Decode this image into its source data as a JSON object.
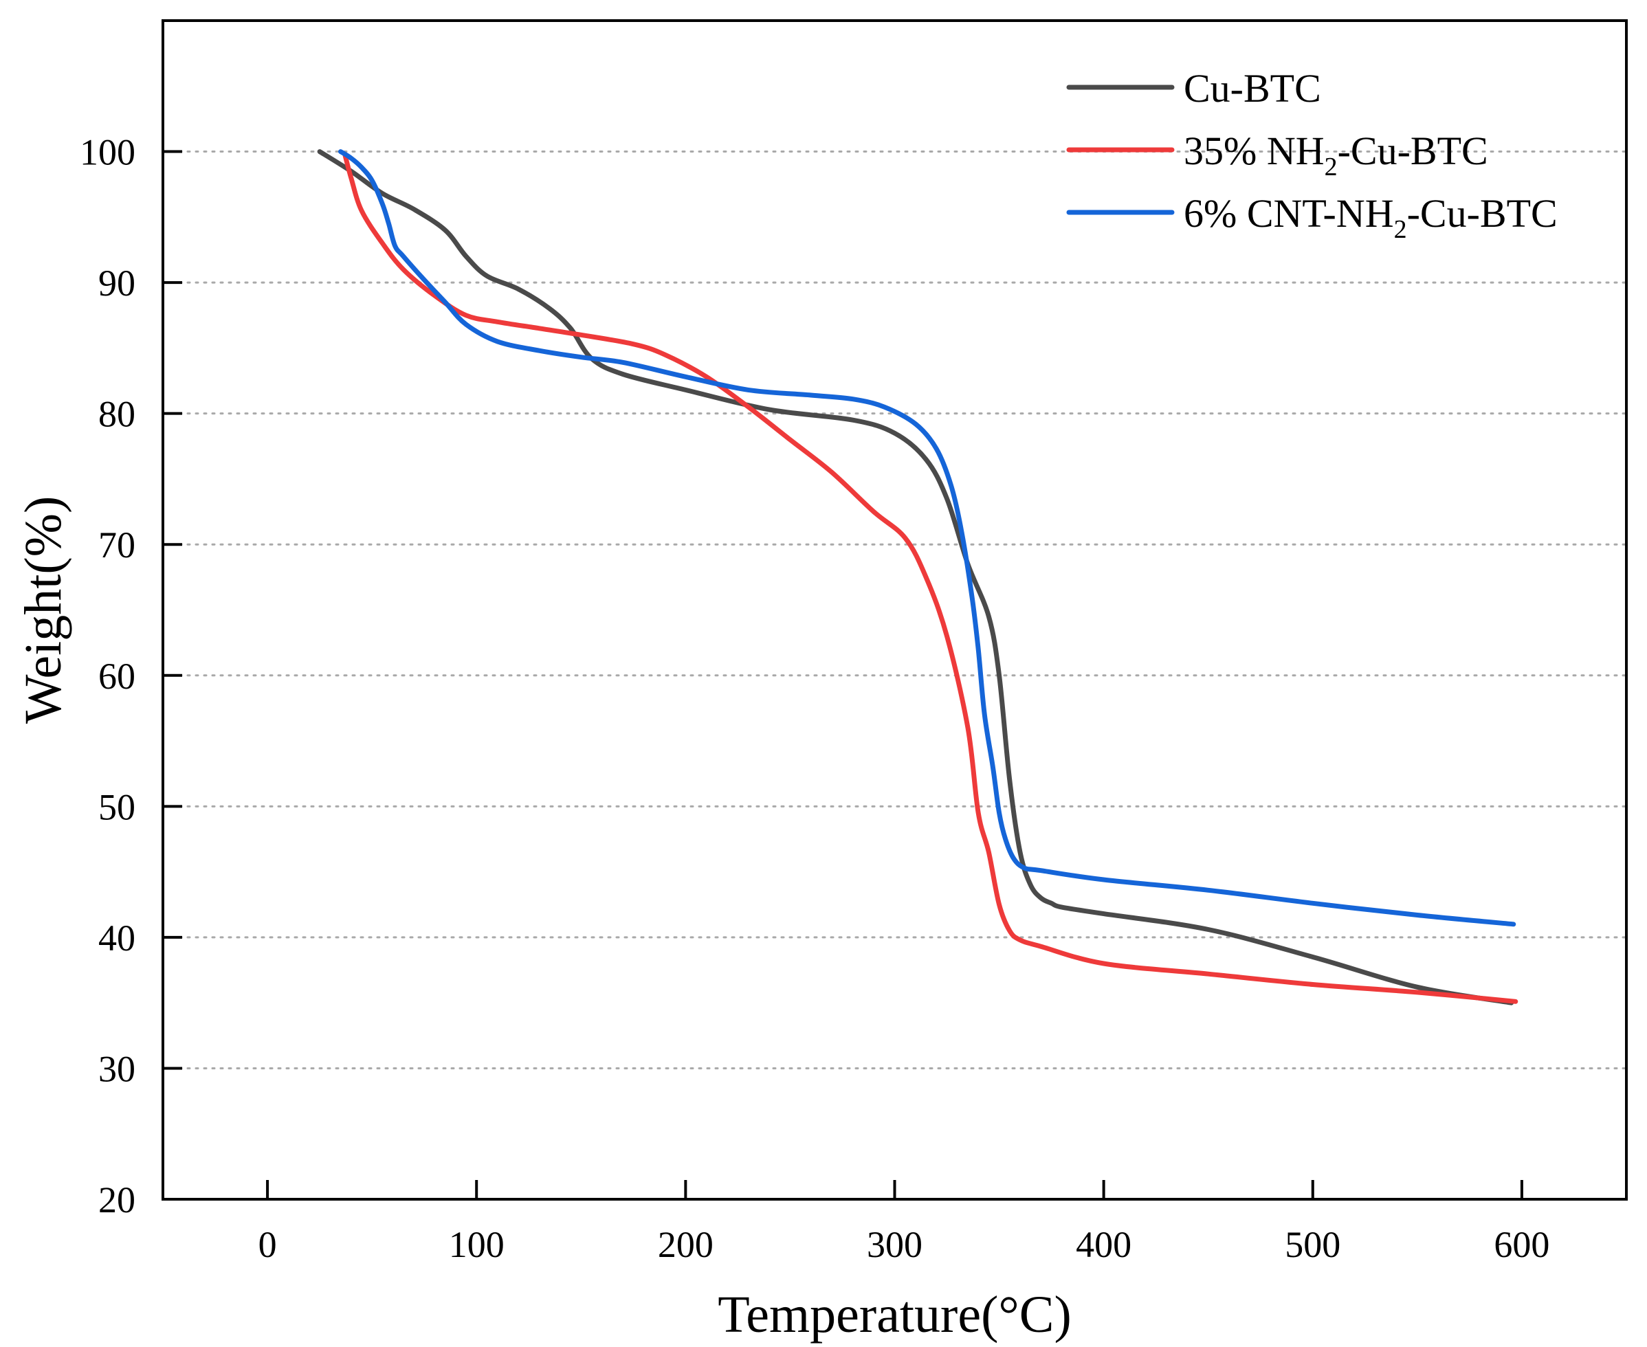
{
  "chart_data": {
    "type": "line",
    "xlabel": "Temperature(°C)",
    "ylabel": "Weight(%)",
    "xlim": [
      -50,
      650
    ],
    "ylim": [
      20,
      110
    ],
    "x_ticks": [
      0,
      100,
      200,
      300,
      400,
      500,
      600
    ],
    "y_ticks": [
      20,
      30,
      40,
      50,
      60,
      70,
      80,
      90,
      100
    ],
    "grid": "horizontal dotted at y ticks (30–100)",
    "legend_position": "top-right",
    "colors": {
      "Cu-BTC": "#4a4a4a",
      "35% NH2-Cu-BTC": "#ee3a3a",
      "6% CNT-NH2-Cu-BTC": "#1565d8"
    },
    "series": [
      {
        "name": "Cu-BTC",
        "legend_parts": [
          "Cu-BTC"
        ],
        "color": "#4a4a4a",
        "x": [
          25,
          40,
          55,
          70,
          85,
          95,
          105,
          120,
          135,
          145,
          155,
          170,
          200,
          240,
          280,
          300,
          315,
          325,
          335,
          345,
          350,
          355,
          360,
          365,
          370,
          375,
          380,
          400,
          450,
          500,
          550,
          595
        ],
        "y": [
          100,
          98.5,
          96.8,
          95.6,
          94.0,
          92.0,
          90.5,
          89.5,
          88.0,
          86.5,
          84.2,
          83.0,
          81.8,
          80.3,
          79.5,
          78.5,
          76.5,
          73.5,
          68.5,
          64.5,
          60.0,
          52.0,
          46.5,
          44.0,
          43.0,
          42.6,
          42.3,
          41.8,
          40.6,
          38.5,
          36.2,
          35.0
        ]
      },
      {
        "name": "35% NH₂-Cu-BTC",
        "legend_parts": [
          "35% NH",
          "2",
          "-Cu-BTC"
        ],
        "color": "#ee3a3a",
        "x": [
          37,
          40,
          45,
          55,
          65,
          80,
          95,
          110,
          130,
          150,
          175,
          190,
          210,
          230,
          250,
          270,
          290,
          305,
          315,
          325,
          335,
          340,
          345,
          350,
          355,
          360,
          370,
          400,
          450,
          500,
          550,
          597
        ],
        "y": [
          99.8,
          98.0,
          95.5,
          93.0,
          91.0,
          89.0,
          87.5,
          87.0,
          86.5,
          86.0,
          85.3,
          84.5,
          82.8,
          80.5,
          78.0,
          75.5,
          72.5,
          70.5,
          67.5,
          63.0,
          56.0,
          49.5,
          46.5,
          42.5,
          40.5,
          39.8,
          39.3,
          38.0,
          37.2,
          36.4,
          35.8,
          35.1
        ]
      },
      {
        "name": "6% CNT-NH₂-Cu-BTC",
        "legend_parts": [
          "6% CNT-NH",
          "2",
          "-Cu-BTC"
        ],
        "color": "#1565d8",
        "x": [
          35,
          40,
          45,
          50,
          55,
          58,
          61,
          65,
          75,
          85,
          95,
          110,
          130,
          150,
          170,
          200,
          230,
          260,
          280,
          295,
          310,
          320,
          327,
          332,
          337,
          340,
          343,
          347,
          350,
          353,
          357,
          362,
          370,
          400,
          450,
          500,
          550,
          596
        ],
        "y": [
          100,
          99.5,
          98.8,
          97.8,
          96.0,
          94.5,
          92.8,
          92.0,
          90.2,
          88.5,
          86.8,
          85.5,
          84.8,
          84.3,
          83.9,
          82.8,
          81.8,
          81.4,
          81.1,
          80.5,
          79.2,
          77.3,
          74.5,
          71.0,
          66.0,
          62.0,
          57.0,
          53.0,
          49.5,
          47.5,
          46.0,
          45.3,
          45.1,
          44.4,
          43.6,
          42.6,
          41.7,
          41.0
        ]
      }
    ]
  }
}
